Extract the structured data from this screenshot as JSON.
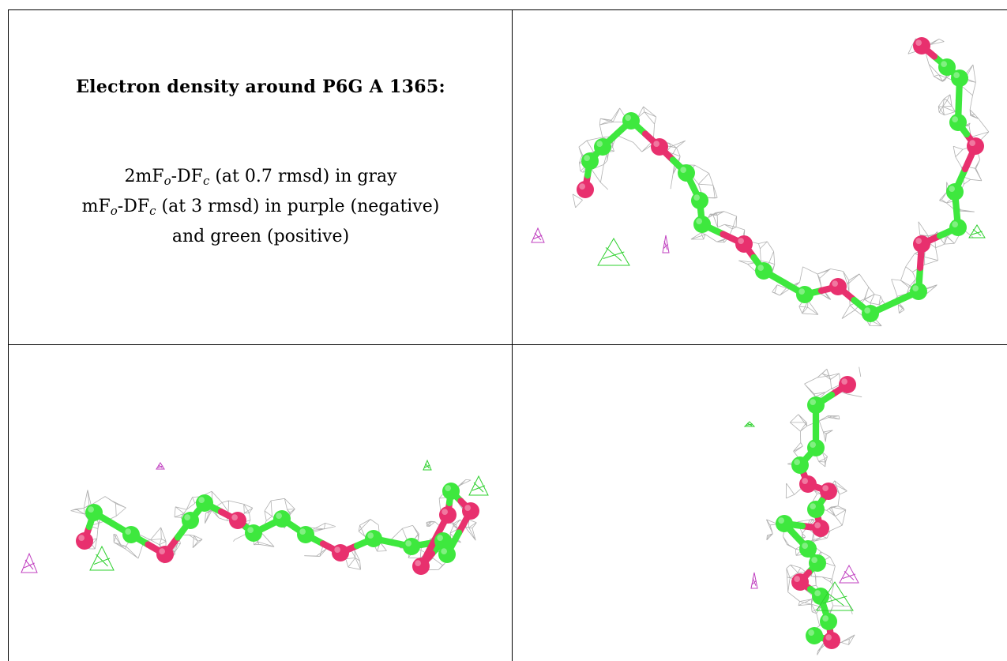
{
  "title": "Electron density around P6G A 1365:",
  "legend": {
    "line1_prefix": "2mF",
    "line1_sub1": "o",
    "line1_mid": "-DF",
    "line1_sub2": "c",
    "line1_suffix": " (at 0.7 rmsd) in gray",
    "line2_prefix": "mF",
    "line2_sub1": "o",
    "line2_mid": "-DF",
    "line2_sub2": "c",
    "line2_suffix": " (at 3 rmsd) in purple (negative)",
    "line3": "and green (positive)"
  },
  "colors": {
    "mesh": "#a9a9a9",
    "carbon": "#3ee83e",
    "oxygen": "#e8306e",
    "negative": "#c040c0",
    "positive": "#2ed02e",
    "border": "#000000"
  },
  "views": [
    {
      "name": "view-top-right"
    },
    {
      "name": "view-bottom-left"
    },
    {
      "name": "view-bottom-right"
    }
  ]
}
